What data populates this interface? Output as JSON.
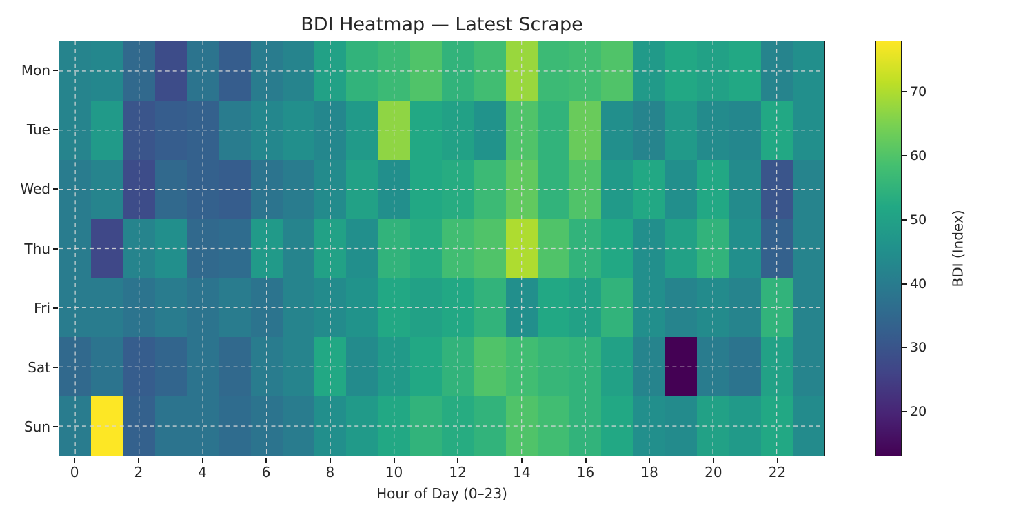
{
  "figure": {
    "background": "#ffffff"
  },
  "chart_data": {
    "type": "heatmap",
    "title": "BDI Heatmap — Latest Scrape",
    "xlabel": "Hour of Day (0–23)",
    "colorbar_label": "BDI (Index)",
    "row_labels": [
      "Mon",
      "Tue",
      "Wed",
      "Thu",
      "Fri",
      "Sat",
      "Sun"
    ],
    "col_count": 24,
    "x_tick_values": [
      0,
      2,
      4,
      6,
      8,
      10,
      12,
      14,
      16,
      18,
      20,
      22
    ],
    "colorbar_ticks": [
      20,
      30,
      40,
      50,
      60,
      70
    ],
    "vmin": 13,
    "vmax": 78,
    "colormap": "viridis",
    "colormap_stops": [
      "#440154",
      "#482475",
      "#414487",
      "#355f8d",
      "#2a788e",
      "#21918c",
      "#22a884",
      "#44bf70",
      "#7ad151",
      "#bddf26",
      "#fde725"
    ],
    "grid": {
      "style": "dashed",
      "color": "#d8d8d8"
    },
    "values": [
      [
        42,
        43,
        35,
        28,
        38,
        32,
        40,
        42,
        50,
        55,
        57,
        60,
        55,
        58,
        68,
        57,
        58,
        60,
        48,
        52,
        50,
        52,
        42,
        45
      ],
      [
        42,
        48,
        30,
        32,
        33,
        40,
        43,
        45,
        43,
        48,
        67,
        52,
        50,
        46,
        60,
        55,
        63,
        45,
        42,
        48,
        44,
        43,
        52,
        45
      ],
      [
        40,
        42,
        28,
        35,
        33,
        32,
        38,
        40,
        44,
        50,
        45,
        52,
        53,
        57,
        62,
        55,
        60,
        48,
        52,
        45,
        52,
        44,
        30,
        42
      ],
      [
        40,
        27,
        42,
        45,
        35,
        36,
        48,
        42,
        50,
        45,
        55,
        53,
        58,
        60,
        70,
        60,
        55,
        52,
        45,
        50,
        55,
        45,
        33,
        42
      ],
      [
        40,
        40,
        38,
        40,
        38,
        40,
        38,
        42,
        44,
        46,
        52,
        50,
        52,
        55,
        45,
        52,
        50,
        55,
        45,
        42,
        44,
        42,
        55,
        42
      ],
      [
        35,
        38,
        32,
        34,
        38,
        35,
        40,
        42,
        52,
        44,
        48,
        52,
        55,
        60,
        58,
        56,
        55,
        50,
        42,
        13,
        40,
        38,
        50,
        42
      ],
      [
        40,
        78,
        33,
        38,
        38,
        36,
        38,
        40,
        45,
        48,
        52,
        55,
        53,
        55,
        60,
        58,
        55,
        52,
        45,
        44,
        50,
        48,
        52,
        44
      ]
    ]
  }
}
